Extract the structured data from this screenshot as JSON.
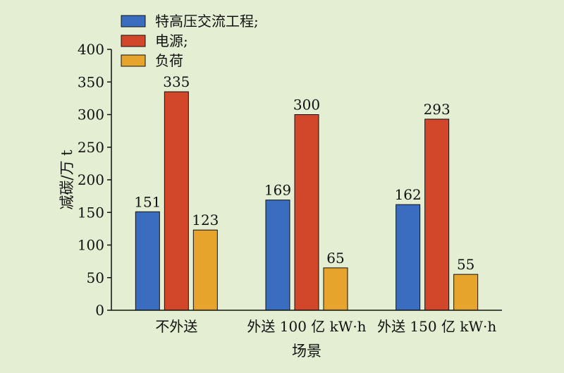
{
  "chart_data": {
    "type": "bar",
    "categories": [
      "不外送",
      "外送 100 亿 kW·h",
      "外送 150 亿 kW·h"
    ],
    "series": [
      {
        "name": "特高压交流工程;",
        "color": "#3a6dbf",
        "values": [
          151,
          169,
          162
        ]
      },
      {
        "name": "电源;",
        "color": "#d2462a",
        "values": [
          335,
          300,
          293
        ]
      },
      {
        "name": "负荷",
        "color": "#e6a42c",
        "values": [
          123,
          65,
          55
        ]
      }
    ],
    "ylabel": "减碳/万 t",
    "xlabel": "场景",
    "ylim": [
      0,
      400
    ],
    "yticks": [
      0,
      50,
      100,
      150,
      200,
      250,
      300,
      350,
      400
    ],
    "grid": false,
    "legend": "top-left"
  }
}
